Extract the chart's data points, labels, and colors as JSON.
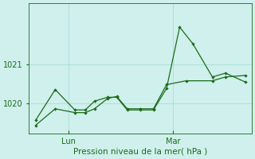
{
  "bg_color": "#cff0ec",
  "grid_color": "#a8ddd7",
  "line_color": "#1a6b1a",
  "xlabel": "Pression niveau de la mer( hPa )",
  "line1_x": [
    0,
    1.5,
    3.0,
    3.8,
    4.5,
    5.5,
    6.2,
    7.0,
    8.0,
    9.0,
    10.0,
    11.0,
    12.0,
    13.5,
    14.5,
    16.0
  ],
  "line1_y": [
    1019.55,
    1020.35,
    1019.82,
    1019.82,
    1020.05,
    1020.15,
    1020.15,
    1019.82,
    1019.82,
    1019.82,
    1020.38,
    1021.98,
    1021.55,
    1020.68,
    1020.78,
    1020.55
  ],
  "line2_x": [
    0,
    1.5,
    3.0,
    3.8,
    4.5,
    5.5,
    6.2,
    7.0,
    8.0,
    9.0,
    10.0,
    11.5,
    13.5,
    14.5,
    16.0
  ],
  "line2_y": [
    1019.42,
    1019.85,
    1019.75,
    1019.75,
    1019.85,
    1020.12,
    1020.17,
    1019.85,
    1019.85,
    1019.85,
    1020.48,
    1020.58,
    1020.58,
    1020.68,
    1020.72
  ],
  "lun_x": 2.5,
  "mar_x": 10.5,
  "ylim": [
    1019.2,
    1022.6
  ],
  "yticks": [
    1020,
    1021
  ],
  "xlim": [
    -0.5,
    16.5
  ]
}
